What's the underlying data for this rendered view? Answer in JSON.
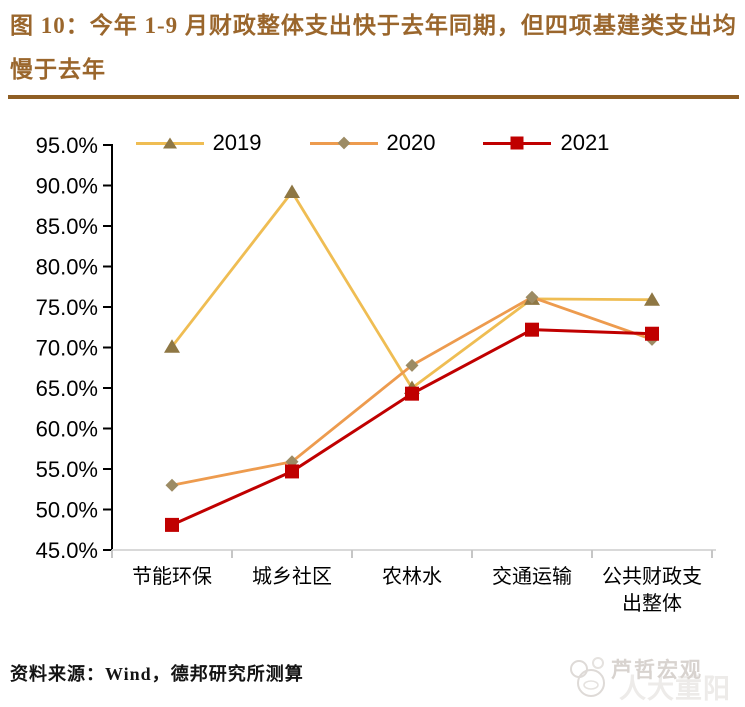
{
  "header": {
    "title": "图 10：今年 1-9 月财政整体支出快于去年同期，但四项基建类支出均慢于去年"
  },
  "chart_data": {
    "type": "line",
    "title": "",
    "xlabel": "",
    "ylabel": "",
    "categories": [
      "节能环保",
      "城乡社区",
      "农林水",
      "交通运输",
      "公共财政支出整体"
    ],
    "series": [
      {
        "name": "2019",
        "color": "#EFBD53",
        "marker": "triangle",
        "marker_color": "#8E7744",
        "values": [
          70.1,
          89.2,
          65.0,
          76.0,
          75.9
        ]
      },
      {
        "name": "2020",
        "color": "#ED9B4E",
        "marker": "diamond",
        "marker_color": "#9C8B64",
        "values": [
          53.0,
          55.9,
          67.8,
          76.2,
          71.0
        ]
      },
      {
        "name": "2021",
        "color": "#C00000",
        "marker": "square",
        "marker_color": "#C00000",
        "values": [
          48.1,
          54.7,
          64.3,
          72.2,
          71.7
        ]
      }
    ],
    "ylim": [
      45,
      95
    ],
    "ytick_step": 5,
    "ytick_labels": [
      "95.0%",
      "90.0%",
      "85.0%",
      "80.0%",
      "75.0%",
      "70.0%",
      "65.0%",
      "60.0%",
      "55.0%",
      "50.0%",
      "45.0%"
    ],
    "grid": false,
    "legend_position": "top",
    "legend": [
      "2019",
      "2020",
      "2021"
    ]
  },
  "footer": {
    "source": "资料来源：Wind，德邦研究所测算"
  },
  "watermark": {
    "text": "芦哲宏观",
    "ghost_text": "人大重阳",
    "logo": "panda-doodle-icon"
  }
}
